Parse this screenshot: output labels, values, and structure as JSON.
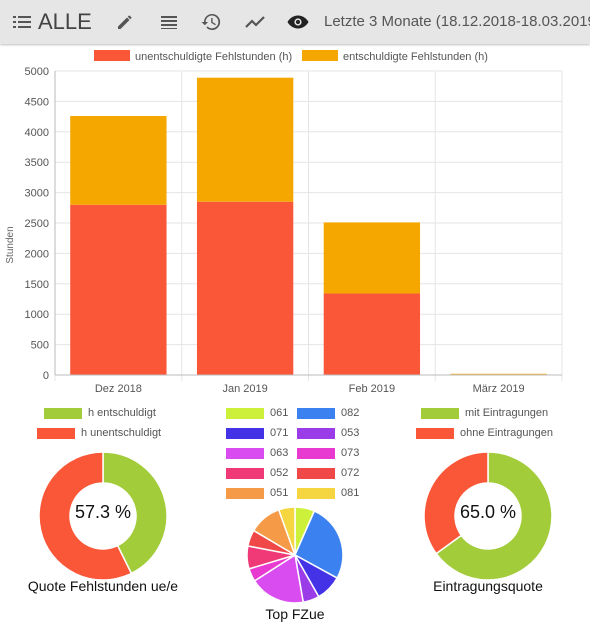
{
  "toolbar": {
    "title": "ALLE",
    "range_label": "Letzte 3 Monate (18.12.2018-18.03.2019)",
    "icons": [
      "list-menu-icon",
      "pencil-icon",
      "list-icon",
      "history-icon",
      "trend-line-icon",
      "eye-icon"
    ]
  },
  "colors": {
    "unexcused": "#f95738",
    "excused": "#f5a700",
    "green": "#a2cc3a"
  },
  "chart_data": [
    {
      "type": "bar",
      "stacked": true,
      "categories": [
        "Dez 2018",
        "Jan 2019",
        "Feb 2019",
        "März 2019"
      ],
      "series": [
        {
          "name": "unentschuldigte Fehlstunden (h)",
          "color": "#f95738",
          "values": [
            2800,
            2850,
            1340,
            10
          ]
        },
        {
          "name": "entschuldigte Fehlstunden (h)",
          "color": "#f5a700",
          "values": [
            1460,
            2040,
            1170,
            10
          ]
        }
      ],
      "xlabel": "",
      "ylabel": "Stunden",
      "ylim": [
        0,
        5000
      ],
      "yticks": [
        0,
        500,
        1000,
        1500,
        2000,
        2500,
        3000,
        3500,
        4000,
        4500,
        5000
      ],
      "grid": true,
      "legend": "top"
    },
    {
      "type": "pie",
      "donut": true,
      "title": "Quote Fehlstunden ue/e",
      "center_label": "57.3 %",
      "labels": [
        "h entschuldigt",
        "h unentschuldigt"
      ],
      "values": [
        42.7,
        57.3
      ],
      "colors": [
        "#a2cc3a",
        "#f95738"
      ],
      "legend": "top"
    },
    {
      "type": "pie",
      "title": "Top FZue",
      "labels": [
        "061",
        "082",
        "071",
        "053",
        "063",
        "073",
        "052",
        "072",
        "051",
        "081"
      ],
      "values": [
        6,
        24,
        8,
        5,
        17,
        4,
        7,
        5,
        10,
        5
      ],
      "colors": [
        "#cdf03a",
        "#3b82f0",
        "#4433e6",
        "#9a3ce8",
        "#d94df0",
        "#e83ad0",
        "#f03a78",
        "#f04848",
        "#f59a46",
        "#f5d640"
      ],
      "legend": "top"
    },
    {
      "type": "pie",
      "donut": true,
      "title": "Eintragungsquote",
      "center_label": "65.0 %",
      "labels": [
        "mit Eintragungen",
        "ohne Eintragungen"
      ],
      "values": [
        65.0,
        35.0
      ],
      "colors": [
        "#a2cc3a",
        "#f95738"
      ],
      "legend": "top"
    }
  ]
}
